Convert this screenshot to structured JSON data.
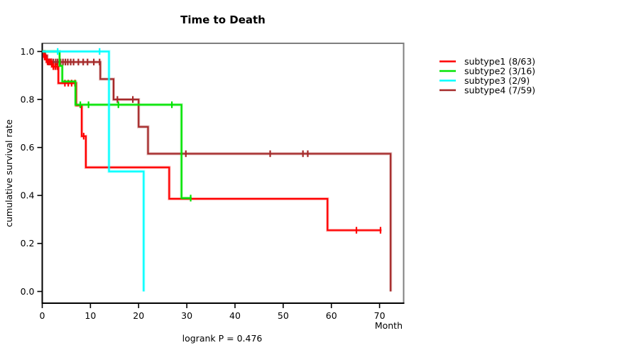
{
  "title": "Time to Death",
  "annotation": "logrank P = 0.476",
  "chart_data": {
    "type": "line",
    "subtype": "kaplan-meier-step",
    "title": "Time to Death",
    "xlabel": "Month",
    "ylabel": "cumulative survival rate",
    "annotation": "logrank P = 0.476",
    "xlim": [
      0,
      75
    ],
    "ylim": [
      0,
      1
    ],
    "x_ticks": [
      0,
      10,
      20,
      30,
      40,
      50,
      60,
      70
    ],
    "y_ticks": [
      "0.0",
      "0.2",
      "0.4",
      "0.6",
      "0.8",
      "1.0"
    ],
    "grid": false,
    "legend_position": "right-outside",
    "box_color": "#7f7f7f",
    "axis_color": "#000000",
    "series": [
      {
        "name": "subtype4 (7/59)",
        "legend_order": 3,
        "color": "#a52a2a",
        "steps": [
          [
            0,
            1.0
          ],
          [
            0.4,
            0.983
          ],
          [
            1.0,
            0.956
          ],
          [
            12.05,
            0.885
          ],
          [
            14.8,
            0.8
          ],
          [
            20.0,
            0.686
          ],
          [
            21.95,
            0.574
          ],
          [
            72.3,
            0.0
          ]
        ],
        "end": 72.3,
        "censors": [
          [
            0.6,
            0.983
          ],
          [
            1.4,
            0.956
          ],
          [
            1.8,
            0.956
          ],
          [
            2.3,
            0.956
          ],
          [
            2.8,
            0.956
          ],
          [
            3.2,
            0.956
          ],
          [
            3.8,
            0.956
          ],
          [
            4.3,
            0.956
          ],
          [
            4.8,
            0.956
          ],
          [
            5.3,
            0.956
          ],
          [
            5.9,
            0.956
          ],
          [
            6.5,
            0.956
          ],
          [
            7.5,
            0.956
          ],
          [
            8.5,
            0.956
          ],
          [
            9.4,
            0.956
          ],
          [
            10.7,
            0.956
          ],
          [
            11.9,
            0.956
          ],
          [
            15.6,
            0.8
          ],
          [
            18.8,
            0.8
          ],
          [
            29.8,
            0.574
          ],
          [
            47.3,
            0.574
          ],
          [
            54.1,
            0.574
          ],
          [
            55.1,
            0.574
          ]
        ]
      },
      {
        "name": "subtype1 (8/63)",
        "legend_order": 0,
        "color": "#ff0000",
        "steps": [
          [
            0,
            1.0
          ],
          [
            0.35,
            0.977
          ],
          [
            0.9,
            0.957
          ],
          [
            2.0,
            0.937
          ],
          [
            3.35,
            0.868
          ],
          [
            7.05,
            0.775
          ],
          [
            8.2,
            0.647
          ],
          [
            9.05,
            0.517
          ],
          [
            26.35,
            0.386
          ],
          [
            59.2,
            0.255
          ]
        ],
        "end": 70.4,
        "censors": [
          [
            0.5,
            0.977
          ],
          [
            0.7,
            0.977
          ],
          [
            1.1,
            0.957
          ],
          [
            1.5,
            0.957
          ],
          [
            1.9,
            0.957
          ],
          [
            2.3,
            0.937
          ],
          [
            2.7,
            0.937
          ],
          [
            3.1,
            0.937
          ],
          [
            4.7,
            0.868
          ],
          [
            5.4,
            0.868
          ],
          [
            6.1,
            0.868
          ],
          [
            6.8,
            0.868
          ],
          [
            8.6,
            0.647
          ],
          [
            65.2,
            0.255
          ],
          [
            70.2,
            0.255
          ]
        ]
      },
      {
        "name": "subtype2 (3/16)",
        "legend_order": 1,
        "color": "#00e400",
        "steps": [
          [
            0,
            1.0
          ],
          [
            3.6,
            0.94
          ],
          [
            4.15,
            0.875
          ],
          [
            6.9,
            0.778
          ],
          [
            28.9,
            0.389
          ]
        ],
        "end": 31.0,
        "censors": [
          [
            7.9,
            0.778
          ],
          [
            9.6,
            0.778
          ],
          [
            15.8,
            0.778
          ],
          [
            26.9,
            0.778
          ],
          [
            30.8,
            0.389
          ]
        ]
      },
      {
        "name": "subtype3 (2/9)",
        "legend_order": 2,
        "color": "#00ffff",
        "steps": [
          [
            0,
            1.0
          ],
          [
            13.85,
            0.5
          ],
          [
            21.05,
            0.0
          ]
        ],
        "end": 21.05,
        "censors": [
          [
            3.2,
            1.0
          ],
          [
            11.9,
            1.0
          ]
        ]
      }
    ]
  }
}
